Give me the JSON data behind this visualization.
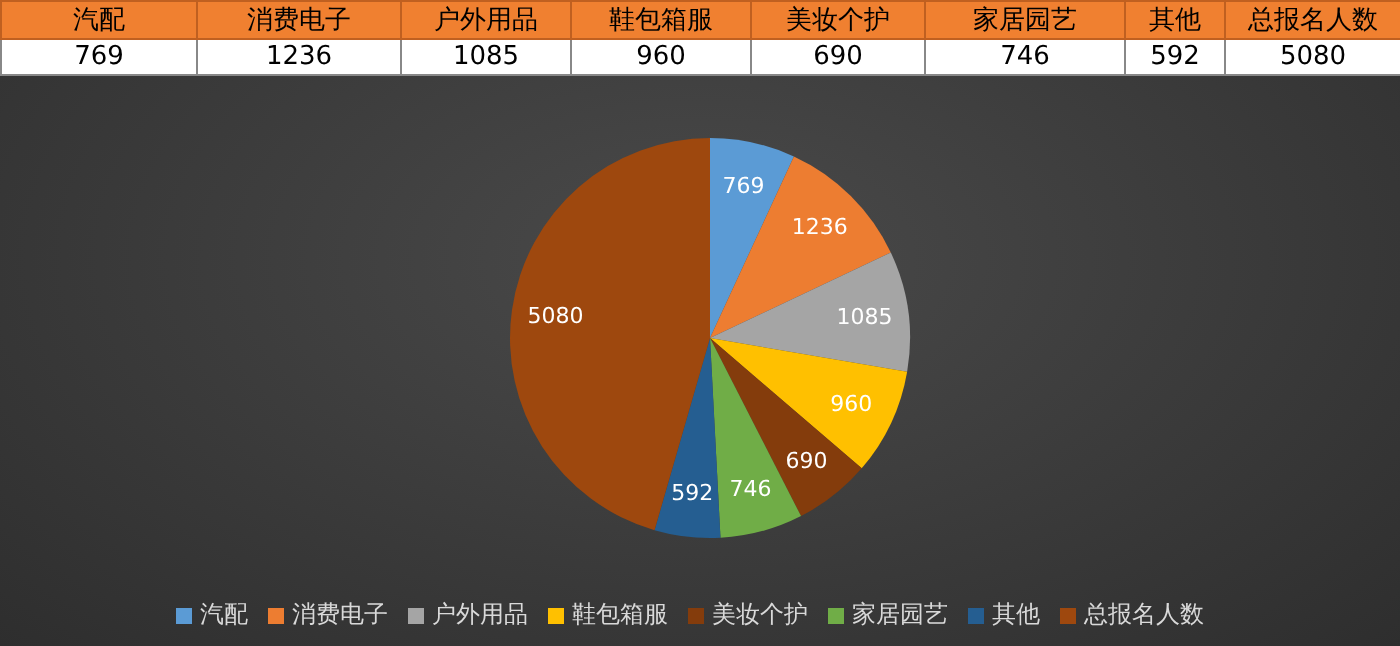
{
  "chart_data": [
    {
      "type": "other",
      "categories": [
        "汽配",
        "消费电子",
        "户外用品",
        "鞋包箱服",
        "美妆个护",
        "家居园艺",
        "其他",
        "总报名人数"
      ],
      "values": [
        769,
        1236,
        1085,
        960,
        690,
        746,
        592,
        5080
      ],
      "data_labels": true
    },
    {
      "type": "pie",
      "categories": [
        "汽配",
        "消费电子",
        "户外用品",
        "鞋包箱服",
        "美妆个护",
        "家居园艺",
        "其他",
        "总报名人数"
      ],
      "values": [
        769,
        1236,
        1085,
        960,
        690,
        746,
        592,
        5080
      ],
      "colors": [
        "#5b9bd5",
        "#ed7d31",
        "#a5a5a5",
        "#ffc000",
        "#843c0c",
        "#70ad47",
        "#255e91",
        "#9e480e"
      ],
      "data_labels": true,
      "legend": "bottom"
    }
  ]
}
